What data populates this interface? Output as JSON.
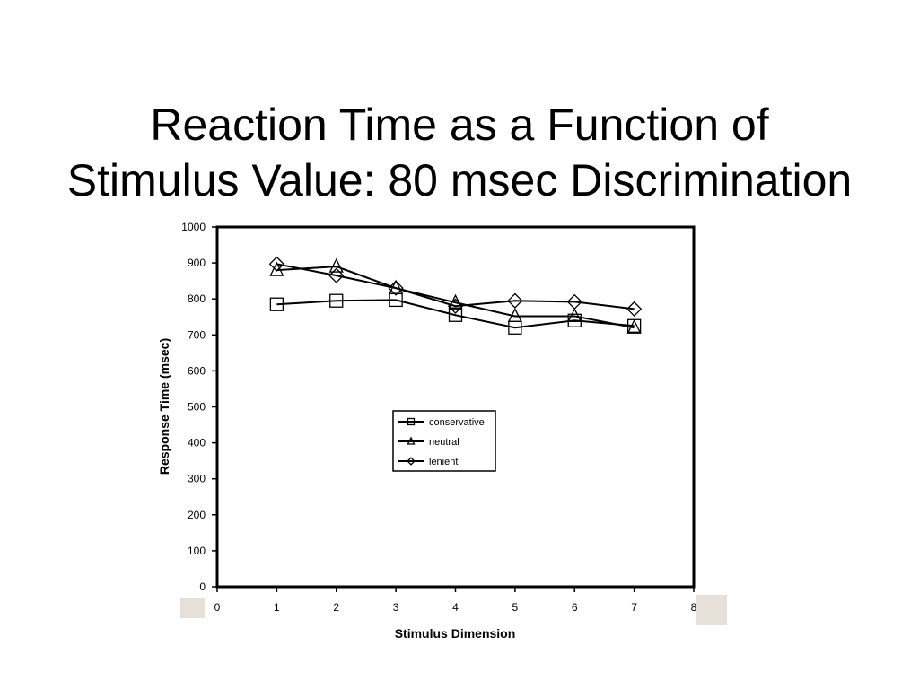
{
  "slide": {
    "title_line1": "Reaction Time as a Function of",
    "title_line2": "Stimulus Value: 80 msec Discrimination",
    "deco_color": "#e7e0d9"
  },
  "chart_data": {
    "type": "line",
    "xlabel": "Stimulus Dimension",
    "ylabel": "Response Time (msec)",
    "xlim": [
      0,
      8
    ],
    "ylim": [
      0,
      1000
    ],
    "x_ticks": [
      0,
      1,
      2,
      3,
      4,
      5,
      6,
      7,
      8
    ],
    "y_ticks": [
      0,
      100,
      200,
      300,
      400,
      500,
      600,
      700,
      800,
      900,
      1000
    ],
    "grid": false,
    "legend_position": "center",
    "x": [
      1,
      2,
      3,
      4,
      5,
      6,
      7
    ],
    "series": [
      {
        "name": "conservative",
        "marker": "square",
        "values": [
          785,
          795,
          797,
          755,
          720,
          740,
          725
        ]
      },
      {
        "name": "neutral",
        "marker": "triangle",
        "values": [
          880,
          890,
          830,
          790,
          752,
          752,
          720
        ]
      },
      {
        "name": "lenient",
        "marker": "diamond",
        "values": [
          897,
          865,
          830,
          780,
          795,
          792,
          772
        ]
      }
    ]
  }
}
